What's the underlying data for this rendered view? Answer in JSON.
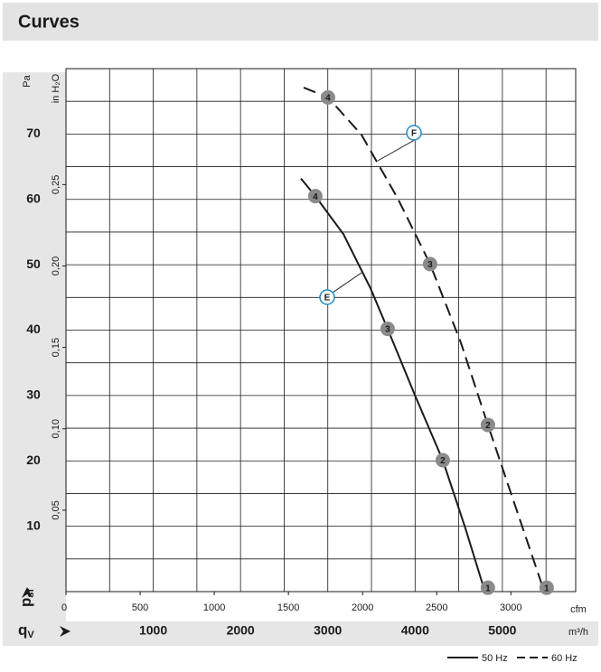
{
  "chart_data": {
    "type": "line",
    "title": "Curves",
    "xlim": [
      0,
      5840
    ],
    "xticks": [
      1000,
      2000,
      3000,
      4000,
      5000
    ],
    "x_unit": "m³/h",
    "x_grid": [
      500,
      1000,
      1500,
      2000,
      2500,
      3000,
      3500,
      4000,
      4500,
      5000,
      5500
    ],
    "x2lim": [
      0,
      3437
    ],
    "x2ticks": [
      0,
      500,
      1000,
      1500,
      2000,
      2500,
      3000
    ],
    "x2_unit": "cfm",
    "ylim": [
      0,
      80
    ],
    "yticks": [
      10,
      20,
      30,
      40,
      50,
      60,
      70
    ],
    "y_grid": [
      5,
      10,
      15,
      20,
      25,
      30,
      35,
      40,
      45,
      50,
      55,
      60,
      65,
      70,
      75
    ],
    "y_unit": "Pa",
    "y2lim": [
      0,
      0.3212
    ],
    "y2ticks": [
      {
        "value": 0.05,
        "label": "0,05"
      },
      {
        "value": 0.1,
        "label": "0,10"
      },
      {
        "value": 0.15,
        "label": "0,15"
      },
      {
        "value": 0.2,
        "label": "0,20"
      },
      {
        "value": 0.25,
        "label": "0,25"
      }
    ],
    "y2_unit": "in H₂O",
    "x_symbol": "q",
    "x_symbol_sub": "V",
    "y_symbol": "p",
    "y_symbol_sub": "sf",
    "series": [
      {
        "name": "50 Hz",
        "color": "#1a1a1a",
        "dashed": false,
        "x": [
          2692,
          2857,
          3178,
          3489,
          3685,
          4006,
          4317,
          4576,
          4800
        ],
        "values": [
          63.2,
          60.5,
          54.7,
          46.4,
          40.2,
          29.8,
          20.1,
          9.7,
          0
        ],
        "markers": {
          "x": [
            2857,
            3685,
            4317,
            4834
          ],
          "values": [
            60.5,
            40.2,
            20.1,
            0.6
          ],
          "labels": [
            "4",
            "3",
            "2",
            "1"
          ]
        }
      },
      {
        "name": "60 Hz",
        "color": "#1a1a1a",
        "dashed": true,
        "x": [
          2723,
          3002,
          3385,
          3799,
          4172,
          4524,
          4834,
          5145,
          5480
        ],
        "values": [
          77.1,
          75.6,
          69.9,
          60.2,
          50.1,
          38.1,
          25.5,
          13.2,
          0
        ],
        "markers": {
          "x": [
            3002,
            4172,
            4834,
            5507
          ],
          "values": [
            75.6,
            50.1,
            25.5,
            0.6
          ],
          "labels": [
            "4",
            "3",
            "2",
            "1"
          ]
        }
      }
    ],
    "annotations": [
      "E",
      "F"
    ]
  }
}
